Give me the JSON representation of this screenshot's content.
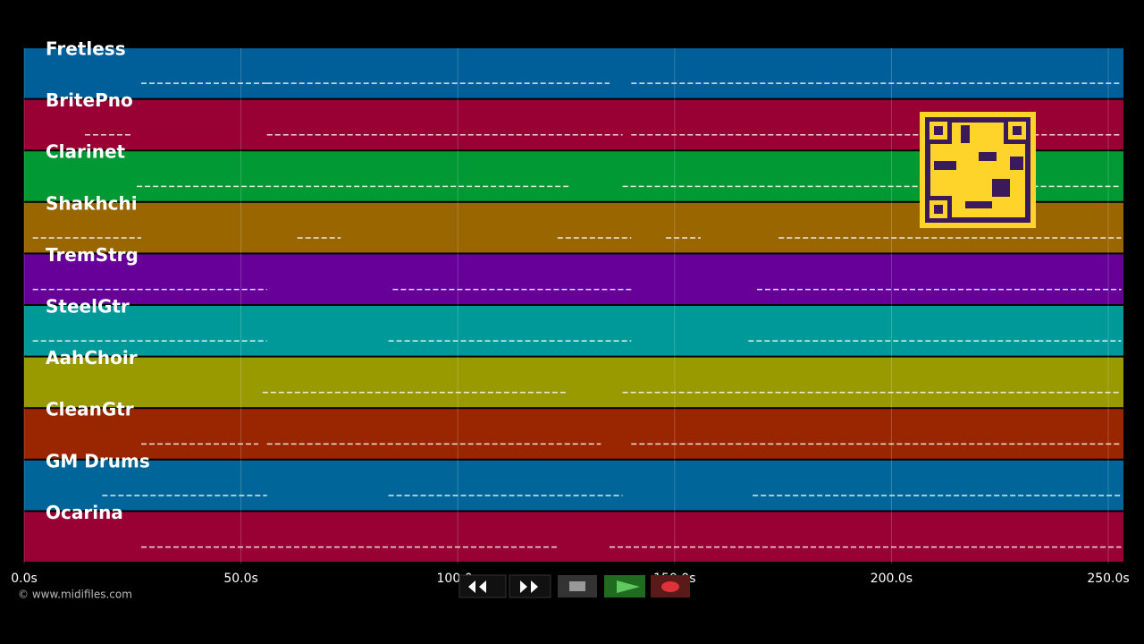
{
  "chart_data": {
    "type": "piano-roll",
    "credit": "© www.midifiles.com",
    "xlim": [
      0,
      253.5
    ],
    "xticks": [
      {
        "value": 0,
        "label": "0.0s"
      },
      {
        "value": 50,
        "label": "50.0s"
      },
      {
        "value": 100,
        "label": "100.0s"
      },
      {
        "value": 150,
        "label": "150.0s"
      },
      {
        "value": 200,
        "label": "200.0s"
      },
      {
        "value": 250,
        "label": "250.0s"
      }
    ],
    "grid": true,
    "tracks": [
      {
        "name": "Fretless",
        "color": "#005f99",
        "notes": [
          [
            27,
            56
          ],
          [
            56,
            135
          ],
          [
            140,
            253
          ]
        ]
      },
      {
        "name": "BritePno",
        "color": "#990033",
        "notes": [
          [
            14,
            25
          ],
          [
            56,
            138
          ],
          [
            140,
            253
          ]
        ]
      },
      {
        "name": "Clarinet",
        "color": "#009933",
        "notes": [
          [
            26,
            126
          ],
          [
            138,
            253
          ]
        ]
      },
      {
        "name": "Shakhchi",
        "color": "#996600",
        "notes": [
          [
            2,
            27
          ],
          [
            63,
            73
          ],
          [
            123,
            140
          ],
          [
            148,
            156
          ],
          [
            174,
            253
          ]
        ]
      },
      {
        "name": "TremStrg",
        "color": "#660099",
        "notes": [
          [
            2,
            56
          ],
          [
            85,
            140
          ],
          [
            169,
            253
          ]
        ]
      },
      {
        "name": "SteelGtr",
        "color": "#009999",
        "notes": [
          [
            2,
            56
          ],
          [
            84,
            140
          ],
          [
            167,
            253
          ]
        ]
      },
      {
        "name": "AahChoir",
        "color": "#999900",
        "notes": [
          [
            55,
            125
          ],
          [
            138,
            253
          ]
        ]
      },
      {
        "name": "CleanGtr",
        "color": "#992600",
        "notes": [
          [
            27,
            54
          ],
          [
            56,
            133
          ],
          [
            140,
            253
          ]
        ]
      },
      {
        "name": "GM Drums",
        "color": "#006699",
        "notes": [
          [
            18,
            56
          ],
          [
            84,
            138
          ],
          [
            168,
            253
          ]
        ]
      },
      {
        "name": "Ocarina",
        "color": "#990033",
        "notes": [
          [
            27,
            123
          ],
          [
            135,
            253
          ]
        ]
      }
    ]
  }
}
